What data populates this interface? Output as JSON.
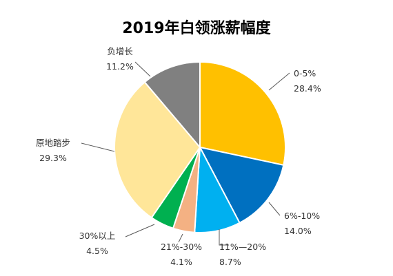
{
  "chart_data": {
    "type": "pie",
    "title": "2019年白领涨薪幅度",
    "series": [
      {
        "name": "0-5%",
        "value": 28.4,
        "display": "28.4%",
        "color": "#FFC000"
      },
      {
        "name": "6%-10%",
        "value": 14.0,
        "display": "14.0%",
        "color": "#0070C0"
      },
      {
        "name": "11%—20%",
        "value": 8.7,
        "display": "8.7%",
        "color": "#00B0F0"
      },
      {
        "name": "21%-30%",
        "value": 4.1,
        "display": "4.1%",
        "color": "#F4B183"
      },
      {
        "name": "30%以上",
        "value": 4.5,
        "display": "4.5%",
        "color": "#00B050"
      },
      {
        "name": "原地踏步",
        "value": 29.3,
        "display": "29.3%",
        "color": "#FFE699"
      },
      {
        "name": "负增长",
        "value": 11.2,
        "display": "11.2%",
        "color": "#808080"
      }
    ],
    "start_angle": "12 o'clock",
    "direction": "clockwise",
    "legend": "none",
    "data_labels": "outside with leader lines"
  }
}
